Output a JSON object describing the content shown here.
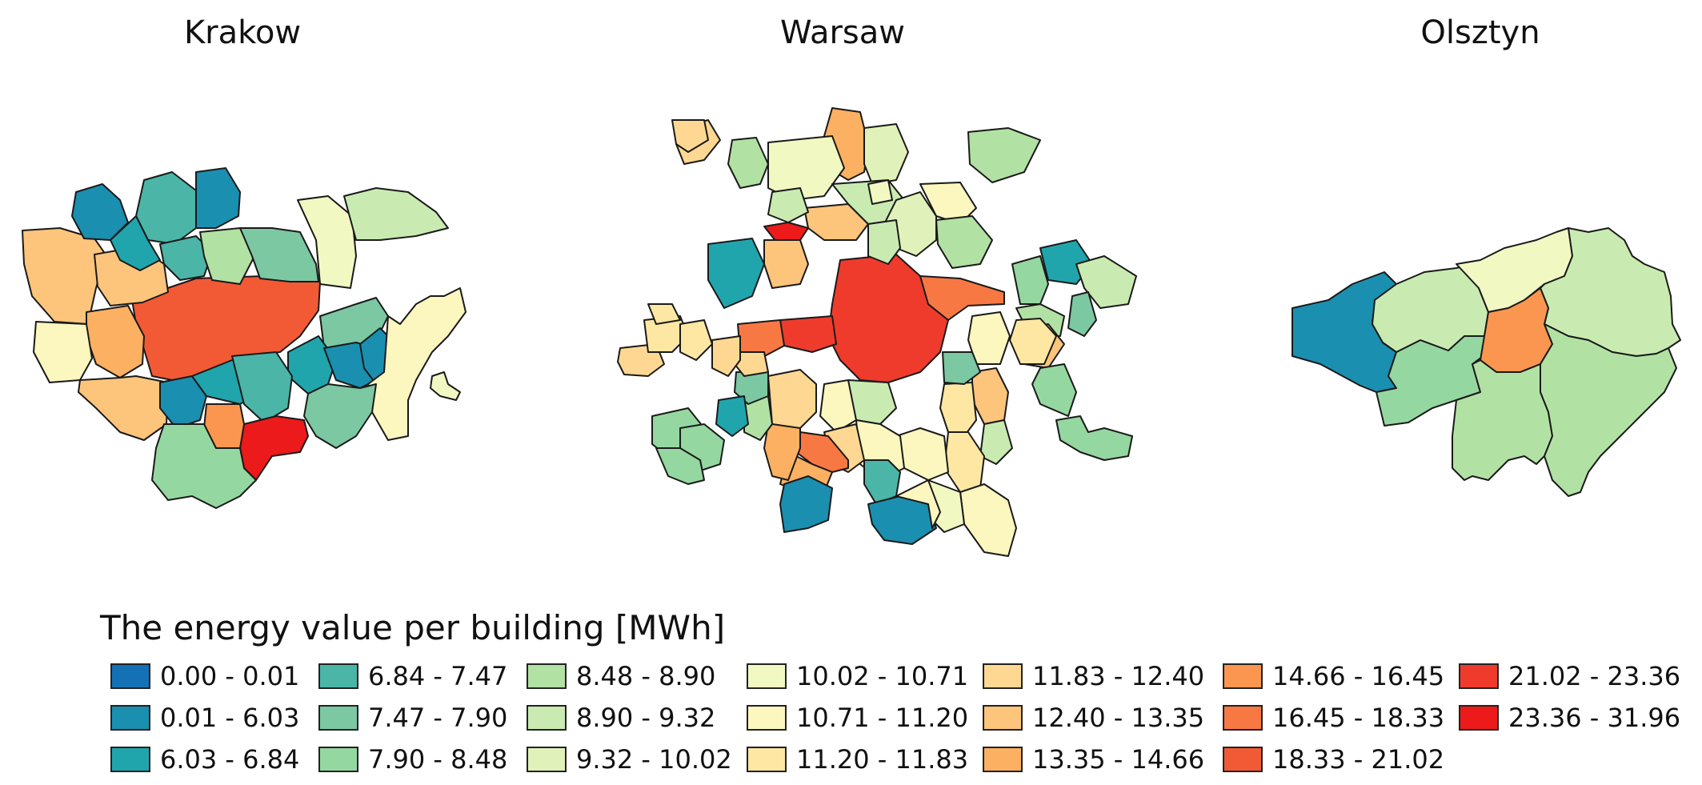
{
  "maps": {
    "krakow": {
      "title": "Krakow"
    },
    "warsaw": {
      "title": "Warsaw"
    },
    "olsztyn": {
      "title": "Olsztyn"
    }
  },
  "legend": {
    "title": "The energy value per building [MWh]",
    "classes": [
      {
        "label": "0.00 - 0.01",
        "color": "#1571b5"
      },
      {
        "label": "0.01 - 6.03",
        "color": "#1a8fb0"
      },
      {
        "label": "6.03 - 6.84",
        "color": "#20a5ad"
      },
      {
        "label": "6.84 - 7.47",
        "color": "#4bb5a7"
      },
      {
        "label": "7.47 - 7.90",
        "color": "#7bc8a2"
      },
      {
        "label": "7.90 - 8.48",
        "color": "#95d7a0"
      },
      {
        "label": "8.48 - 8.90",
        "color": "#b2e1a4"
      },
      {
        "label": "8.90 - 9.32",
        "color": "#c9ebb1"
      },
      {
        "label": "9.32 - 10.02",
        "color": "#e0f2b9"
      },
      {
        "label": "10.02 - 10.71",
        "color": "#f2f8c2"
      },
      {
        "label": "10.71 - 11.20",
        "color": "#fcf6bf"
      },
      {
        "label": "11.20 - 11.83",
        "color": "#fee7a3"
      },
      {
        "label": "11.83 - 12.40",
        "color": "#fed892"
      },
      {
        "label": "12.40 - 13.35",
        "color": "#fdc57b"
      },
      {
        "label": "13.35 - 14.66",
        "color": "#fcb062"
      },
      {
        "label": "14.66 - 16.45",
        "color": "#fb9650"
      },
      {
        "label": "16.45 - 18.33",
        "color": "#f87844"
      },
      {
        "label": "18.33 - 21.02",
        "color": "#f15a35"
      },
      {
        "label": "21.02 - 23.36",
        "color": "#ef3b2c"
      },
      {
        "label": "23.36 - 31.96",
        "color": "#ec1a1a"
      }
    ]
  }
}
